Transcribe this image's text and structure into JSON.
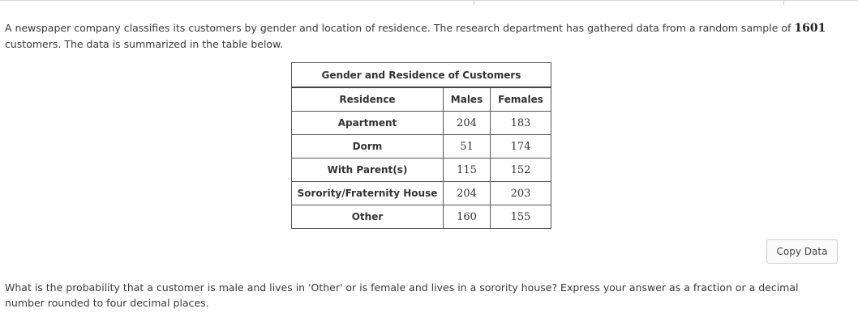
{
  "intro": {
    "text_before": "A newspaper company classifies its customers by gender and location of residence.  The research department has gathered data from a random sample of ",
    "sample_size": "1601",
    "text_after": " customers.  The data is summarized in the table below."
  },
  "table": {
    "caption": "Gender and Residence of Customers",
    "headers": [
      "Residence",
      "Males",
      "Females"
    ],
    "rows": [
      {
        "residence": "Apartment",
        "males": "204",
        "females": "183"
      },
      {
        "residence": "Dorm",
        "males": "51",
        "females": "174"
      },
      {
        "residence": "With Parent(s)",
        "males": "115",
        "females": "152"
      },
      {
        "residence": "Sorority/Fraternity House",
        "males": "204",
        "females": "203"
      },
      {
        "residence": "Other",
        "males": "160",
        "females": "155"
      }
    ]
  },
  "copy_button": {
    "label": "Copy Data"
  },
  "question": {
    "text": "What is the probability that a customer is male and lives in 'Other' or is female and lives in a sorority house? Express your answer as a fraction or a decimal number rounded to four decimal places."
  }
}
